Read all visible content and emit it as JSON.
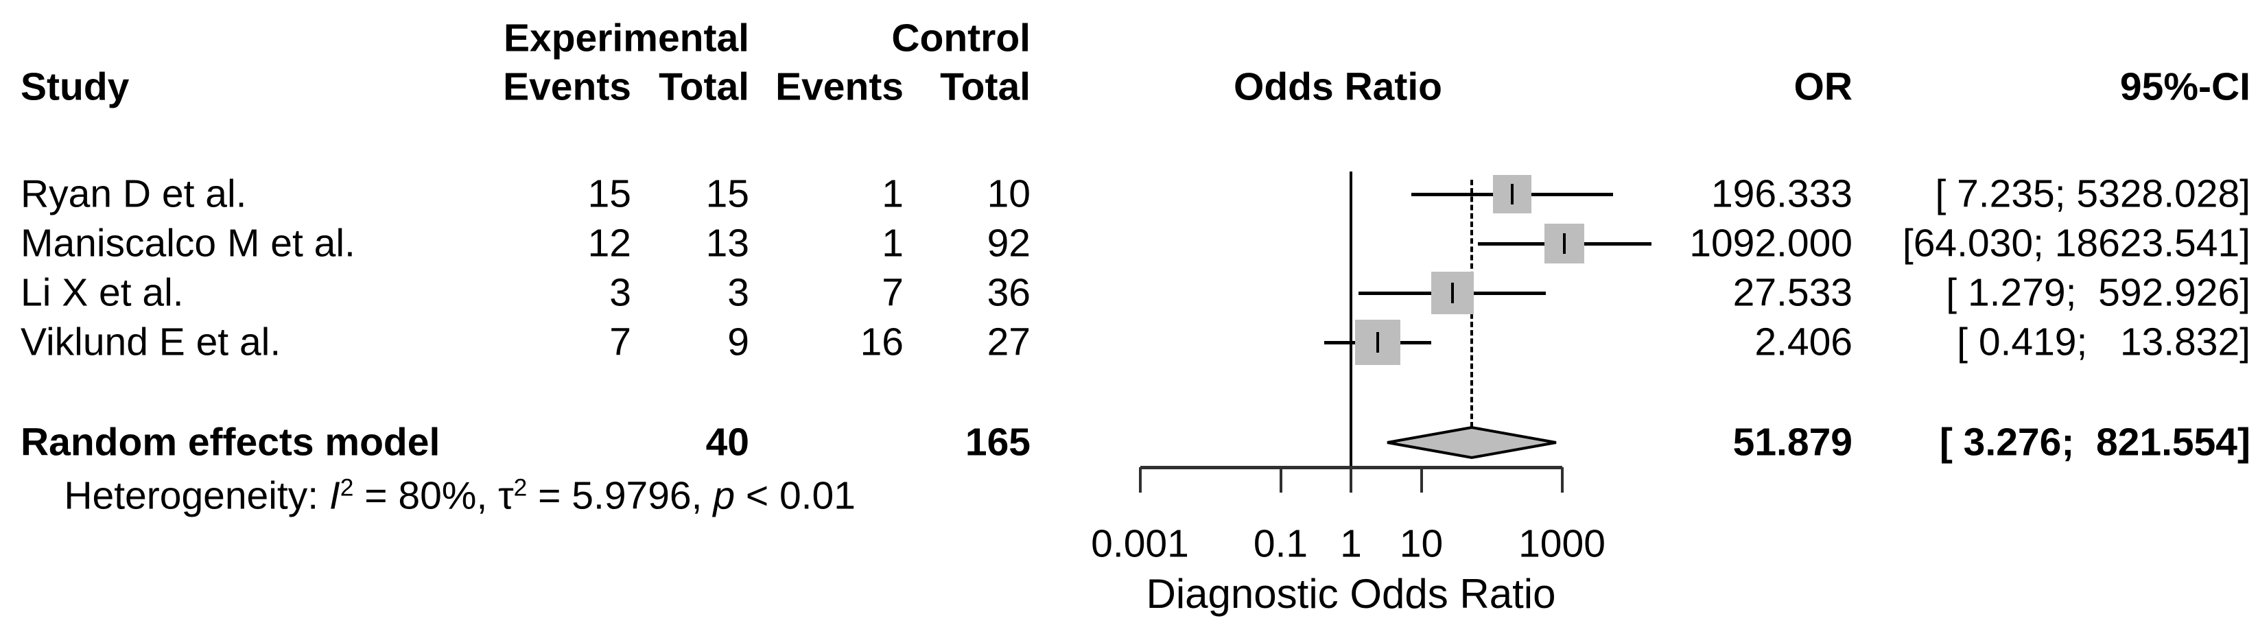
{
  "figure": {
    "headers": {
      "study": "Study",
      "experimental": "Experimental",
      "control": "Control",
      "exp_events": "Events",
      "exp_total": "Total",
      "ctrl_events": "Events",
      "ctrl_total": "Total",
      "odds_ratio": "Odds Ratio",
      "or": "OR",
      "ci": "95%-CI"
    },
    "summary_row": {
      "label": "Random effects model",
      "exp_total": "40",
      "ctrl_total": "165",
      "or_text": "51.879",
      "ci_text": "[ 3.276;  821.554]"
    },
    "heterogeneity": {
      "seg1": "Heterogeneity: ",
      "i": "I",
      "sup1": "2",
      "seg2": " = 80%, ",
      "tau": "τ",
      "sup2": "2",
      "seg3": " = 5.9796, ",
      "p": "p",
      "seg4": " < 0.01"
    }
  },
  "chart_data": {
    "type": "forest",
    "x_scale": "log10",
    "xlabel": "Diagnostic Odds Ratio",
    "axis_range": [
      0.001,
      1000
    ],
    "x_ticks": [
      0.001,
      0.1,
      1,
      10,
      1000
    ],
    "x_tick_labels": [
      "0.001",
      "0.1",
      "1",
      "10",
      "1000"
    ],
    "ref_line": 1,
    "studies": [
      {
        "name": "Ryan D et al.",
        "exp_events": "15",
        "exp_total": "15",
        "ctrl_events": "1",
        "ctrl_total": "10",
        "or": 196.333,
        "ci_low": 7.235,
        "ci_high": 5328.028,
        "or_text": "196.333",
        "ci_text": "[ 7.235; 5328.028]"
      },
      {
        "name": "Maniscalco M et al.",
        "exp_events": "12",
        "exp_total": "13",
        "ctrl_events": "1",
        "ctrl_total": "92",
        "or": 1092.0,
        "ci_low": 64.03,
        "ci_high": 18623.541,
        "or_text": "1092.000",
        "ci_text": "[64.030; 18623.541]"
      },
      {
        "name": "Li X et al.",
        "exp_events": "3",
        "exp_total": "3",
        "ctrl_events": "7",
        "ctrl_total": "36",
        "or": 27.533,
        "ci_low": 1.279,
        "ci_high": 592.926,
        "or_text": "27.533",
        "ci_text": "[ 1.279;  592.926]"
      },
      {
        "name": "Viklund E et al.",
        "exp_events": "7",
        "exp_total": "9",
        "ctrl_events": "16",
        "ctrl_total": "27",
        "or": 2.406,
        "ci_low": 0.419,
        "ci_high": 13.832,
        "or_text": "2.406",
        "ci_text": "[ 0.419;   13.832]"
      }
    ],
    "summary": {
      "label": "Random effects model",
      "or": 51.879,
      "ci_low": 3.276,
      "ci_high": 821.554
    },
    "heterogeneity_text": "Heterogeneity: I² = 80%, τ² = 5.9796, p < 0.01",
    "colors": {
      "marker_fill": "#bdbdbd",
      "line": "#000000"
    },
    "legend": "none",
    "grid": false
  }
}
